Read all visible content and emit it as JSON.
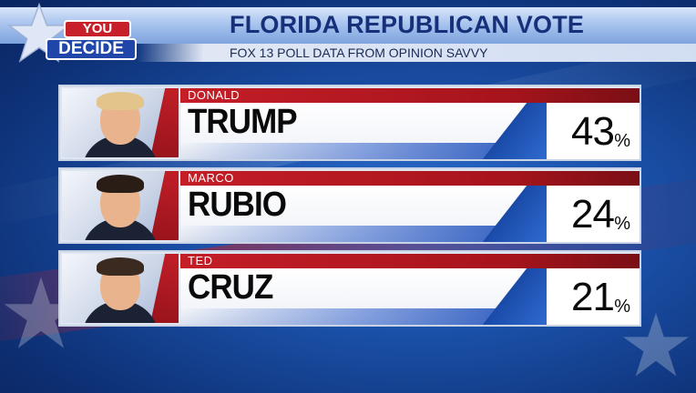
{
  "header": {
    "title": "FLORIDA REPUBLICAN VOTE",
    "subtitle": "FOX 13 POLL DATA FROM OPINION SAVVY"
  },
  "logo": {
    "top_word": "YOU",
    "bottom_word": "DECIDE"
  },
  "percent_symbol": "%",
  "candidates": [
    {
      "first_name": "DONALD",
      "last_name": "TRUMP",
      "percent": "43",
      "hair_color": "#e3c48a"
    },
    {
      "first_name": "MARCO",
      "last_name": "RUBIO",
      "percent": "24",
      "hair_color": "#2a1d16"
    },
    {
      "first_name": "TED",
      "last_name": "CRUZ",
      "percent": "21",
      "hair_color": "#3a2a20"
    }
  ],
  "colors": {
    "accent_red": "#c41e27",
    "accent_blue": "#1e4fb8",
    "title_blue": "#16307a"
  }
}
